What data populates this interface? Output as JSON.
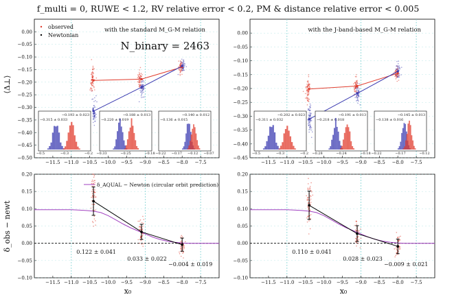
{
  "figure": {
    "title": "f_multi = 0, RUWE < 1.2, RV relative error < 0.2, PM & distance relative error < 0.005",
    "top_ylabel": "⟨Δ⊥⟩",
    "bottom_ylabel": "δ_obs − newt",
    "xlabel": "x₀",
    "xticks": [
      -11.5,
      -11.0,
      -10.5,
      -10.0,
      -9.5,
      -9.0,
      -8.5,
      -8.0,
      -7.5
    ],
    "xlim": [
      -12.0,
      -7.0
    ],
    "colors": {
      "observed": "#e03a2b",
      "newtonian": "#3a3ab0",
      "prediction": "#a040c0",
      "black": "#000000",
      "vline": "#7fd3d3"
    }
  },
  "chart_data": [
    {
      "type": "line",
      "panel": "top-left",
      "legend": [
        "observed",
        "Newtonian"
      ],
      "relation_label": "with the standard M_G-M relation",
      "nbinary_label": "N_binary = 2463",
      "ylim": [
        -0.5,
        0.05
      ],
      "yticks": [
        0.0,
        -0.05,
        -0.1,
        -0.15,
        -0.2,
        -0.25,
        -0.3,
        -0.35,
        -0.4,
        -0.45,
        -0.5
      ],
      "x": [
        -10.4,
        -9.1,
        -8.0
      ],
      "series": [
        {
          "name": "observed",
          "values": [
            -0.193,
            -0.188,
            -0.14
          ]
        },
        {
          "name": "Newtonian",
          "values": [
            -0.315,
            -0.22,
            -0.136
          ]
        }
      ],
      "insets": [
        {
          "label_observed": "−0.193 ± 0.023",
          "label_newton": "−0.315 ± 0.033",
          "xticks": [
            "−0.5",
            "−0.3",
            "−0.2"
          ]
        },
        {
          "label_observed": "−0.188 ± 0.013",
          "label_newton": "−0.220 ± 0.019",
          "xticks": [
            "−0.33",
            "−0.25",
            "−0.18"
          ]
        },
        {
          "label_observed": "−0.140 ± 0.012",
          "label_newton": "−0.136 ± 0.015",
          "xticks": [
            "−0.22",
            "−0.17",
            "−0.12",
            "−0.07"
          ]
        }
      ]
    },
    {
      "type": "line",
      "panel": "top-right",
      "relation_label": "with the J-band-based M_G-M relation",
      "ylim": [
        -0.45,
        0.05
      ],
      "yticks": [
        0.0,
        -0.05,
        -0.1,
        -0.15,
        -0.2,
        -0.25,
        -0.3,
        -0.35,
        -0.4,
        -0.45
      ],
      "x": [
        -10.4,
        -9.1,
        -8.0
      ],
      "series": [
        {
          "name": "observed",
          "values": [
            -0.202,
            -0.191,
            -0.145
          ]
        },
        {
          "name": "Newtonian",
          "values": [
            -0.311,
            -0.218,
            -0.138
          ]
        }
      ],
      "insets": [
        {
          "label_observed": "−0.202 ± 0.023",
          "label_newton": "−0.311 ± 0.032",
          "xticks": [
            "−0.5",
            "−0.3",
            "−0.2"
          ]
        },
        {
          "label_observed": "−0.191 ± 0.013",
          "label_newton": "−0.218 ± 0.018",
          "xticks": [
            "−0.28",
            "−0.24",
            "−0.18"
          ]
        },
        {
          "label_observed": "−0.145 ± 0.013",
          "label_newton": "−0.138 ± 0.016",
          "xticks": [
            "−0.22",
            "−0.17",
            "−0.12"
          ]
        }
      ]
    },
    {
      "type": "line",
      "panel": "bottom-left",
      "legend": [
        "δ_AQUAL − Newton (circular orbit prediction)"
      ],
      "ylim": [
        -0.1,
        0.2
      ],
      "yticks": [
        0.2,
        0.15,
        0.1,
        0.05,
        0.0,
        -0.05,
        -0.1
      ],
      "x": [
        -10.4,
        -9.1,
        -8.0
      ],
      "series": [
        {
          "name": "observed − newtonian",
          "values": [
            0.122,
            0.033,
            -0.004
          ],
          "errors": [
            0.041,
            0.022,
            0.019
          ]
        }
      ],
      "prediction_x": [
        -12.0,
        -11.5,
        -11.0,
        -10.8,
        -10.6,
        -10.4,
        -10.2,
        -10.0,
        -9.8,
        -9.6,
        -9.4,
        -9.2,
        -9.0,
        -8.8,
        -8.6,
        -8.4,
        -8.2,
        -8.0,
        -7.8,
        -7.6,
        -7.4,
        -7.2,
        -7.0
      ],
      "prediction_y": [
        0.097,
        0.097,
        0.097,
        0.096,
        0.095,
        0.093,
        0.089,
        0.08,
        0.068,
        0.056,
        0.045,
        0.036,
        0.027,
        0.018,
        0.011,
        0.006,
        0.003,
        0.001,
        0.0,
        0.0,
        0.0,
        0.0,
        0.0
      ],
      "annotations": [
        "0.122 ± 0.041",
        "0.033 ± 0.022",
        "−0.004 ± 0.019"
      ]
    },
    {
      "type": "line",
      "panel": "bottom-right",
      "ylim": [
        -0.1,
        0.2
      ],
      "yticks": [
        0.2,
        0.15,
        0.1,
        0.05,
        0.0,
        -0.05,
        -0.1
      ],
      "x": [
        -10.4,
        -9.1,
        -8.0
      ],
      "series": [
        {
          "name": "observed − newtonian",
          "values": [
            0.11,
            0.028,
            -0.009
          ],
          "errors": [
            0.041,
            0.023,
            0.021
          ]
        }
      ],
      "prediction_x": [
        -12.0,
        -11.5,
        -11.0,
        -10.8,
        -10.6,
        -10.4,
        -10.2,
        -10.0,
        -9.8,
        -9.6,
        -9.4,
        -9.2,
        -9.0,
        -8.8,
        -8.6,
        -8.4,
        -8.2,
        -8.0,
        -7.8,
        -7.6,
        -7.4,
        -7.2,
        -7.0
      ],
      "prediction_y": [
        0.097,
        0.097,
        0.097,
        0.096,
        0.095,
        0.093,
        0.089,
        0.08,
        0.068,
        0.056,
        0.045,
        0.036,
        0.027,
        0.018,
        0.011,
        0.006,
        0.003,
        0.001,
        0.0,
        0.0,
        0.0,
        0.0,
        0.0
      ],
      "annotations": [
        "0.110 ± 0.041",
        "0.028 ± 0.023",
        "−0.009 ± 0.021"
      ]
    }
  ]
}
